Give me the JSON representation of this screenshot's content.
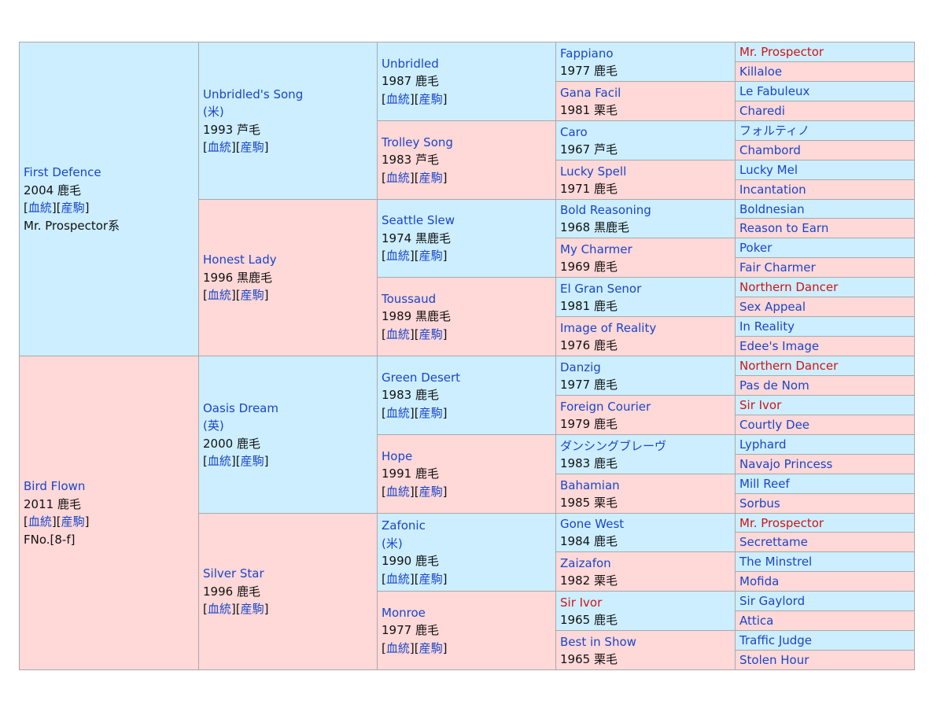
{
  "colors": {
    "sire_bg": "#cceeff",
    "dam_bg": "#ffd8d8",
    "link": "#1a46c8",
    "red": "#d21414",
    "border": "#a9a9a9"
  },
  "link_labels": {
    "blood": "血統",
    "offspring": "産駒"
  },
  "gen1": [
    {
      "name": "First Defence",
      "year_color": "2004 鹿毛",
      "line": "Mr. Prospector系"
    },
    {
      "name": "Bird Flown",
      "year_color": "2011 鹿毛",
      "line": "FNo.[8-f]"
    }
  ],
  "gen2": [
    {
      "name": "Unbridled's Song",
      "country": "(米)",
      "year_color": "1993 芦毛"
    },
    {
      "name": "Honest Lady",
      "year_color": "1996 黒鹿毛"
    },
    {
      "name": "Oasis Dream",
      "country": "(英)",
      "year_color": "2000 鹿毛"
    },
    {
      "name": "Silver Star",
      "year_color": "1996 鹿毛"
    }
  ],
  "gen3": [
    {
      "name": "Unbridled",
      "year_color": "1987 鹿毛"
    },
    {
      "name": "Trolley Song",
      "year_color": "1983 芦毛"
    },
    {
      "name": "Seattle Slew",
      "year_color": "1974 黒鹿毛"
    },
    {
      "name": "Toussaud",
      "year_color": "1989 黒鹿毛"
    },
    {
      "name": "Green Desert",
      "year_color": "1983 鹿毛"
    },
    {
      "name": "Hope",
      "year_color": "1991 鹿毛"
    },
    {
      "name": "Zafonic",
      "country": "(米)",
      "year_color": "1990 鹿毛"
    },
    {
      "name": "Monroe",
      "year_color": "1977 鹿毛"
    }
  ],
  "gen4": [
    {
      "name": "Fappiano",
      "year_color": "1977 鹿毛"
    },
    {
      "name": "Gana Facil",
      "year_color": "1981 栗毛"
    },
    {
      "name": "Caro",
      "year_color": "1967 芦毛"
    },
    {
      "name": "Lucky Spell",
      "year_color": "1971 鹿毛"
    },
    {
      "name": "Bold Reasoning",
      "year_color": "1968 黒鹿毛"
    },
    {
      "name": "My Charmer",
      "year_color": "1969 鹿毛"
    },
    {
      "name": "El Gran Senor",
      "year_color": "1981 鹿毛"
    },
    {
      "name": "Image of Reality",
      "year_color": "1976 鹿毛"
    },
    {
      "name": "Danzig",
      "year_color": "1977 鹿毛"
    },
    {
      "name": "Foreign Courier",
      "year_color": "1979 鹿毛"
    },
    {
      "name": "ダンシングブレーヴ",
      "year_color": "1983 鹿毛"
    },
    {
      "name": "Bahamian",
      "year_color": "1985 栗毛"
    },
    {
      "name": "Gone West",
      "year_color": "1984 鹿毛"
    },
    {
      "name": "Zaizafon",
      "year_color": "1982 栗毛"
    },
    {
      "name": "Sir Ivor",
      "year_color": "1965 鹿毛",
      "red": true
    },
    {
      "name": "Best in Show",
      "year_color": "1965 栗毛"
    }
  ],
  "gen5": [
    {
      "name": "Mr. Prospector",
      "red": true
    },
    {
      "name": "Killaloe"
    },
    {
      "name": "Le Fabuleux"
    },
    {
      "name": "Charedi"
    },
    {
      "name": "フォルティノ"
    },
    {
      "name": "Chambord"
    },
    {
      "name": "Lucky Mel"
    },
    {
      "name": "Incantation"
    },
    {
      "name": "Boldnesian"
    },
    {
      "name": "Reason to Earn"
    },
    {
      "name": "Poker"
    },
    {
      "name": "Fair Charmer"
    },
    {
      "name": "Northern Dancer",
      "red": true
    },
    {
      "name": "Sex Appeal"
    },
    {
      "name": "In Reality"
    },
    {
      "name": "Edee's Image"
    },
    {
      "name": "Northern Dancer",
      "red": true
    },
    {
      "name": "Pas de Nom"
    },
    {
      "name": "Sir Ivor",
      "red": true
    },
    {
      "name": "Courtly Dee"
    },
    {
      "name": "Lyphard"
    },
    {
      "name": "Navajo Princess"
    },
    {
      "name": "Mill Reef"
    },
    {
      "name": "Sorbus"
    },
    {
      "name": "Mr. Prospector",
      "red": true
    },
    {
      "name": "Secrettame"
    },
    {
      "name": "The Minstrel"
    },
    {
      "name": "Mofida"
    },
    {
      "name": "Sir Gaylord"
    },
    {
      "name": "Attica"
    },
    {
      "name": "Traffic Judge"
    },
    {
      "name": "Stolen Hour"
    }
  ]
}
